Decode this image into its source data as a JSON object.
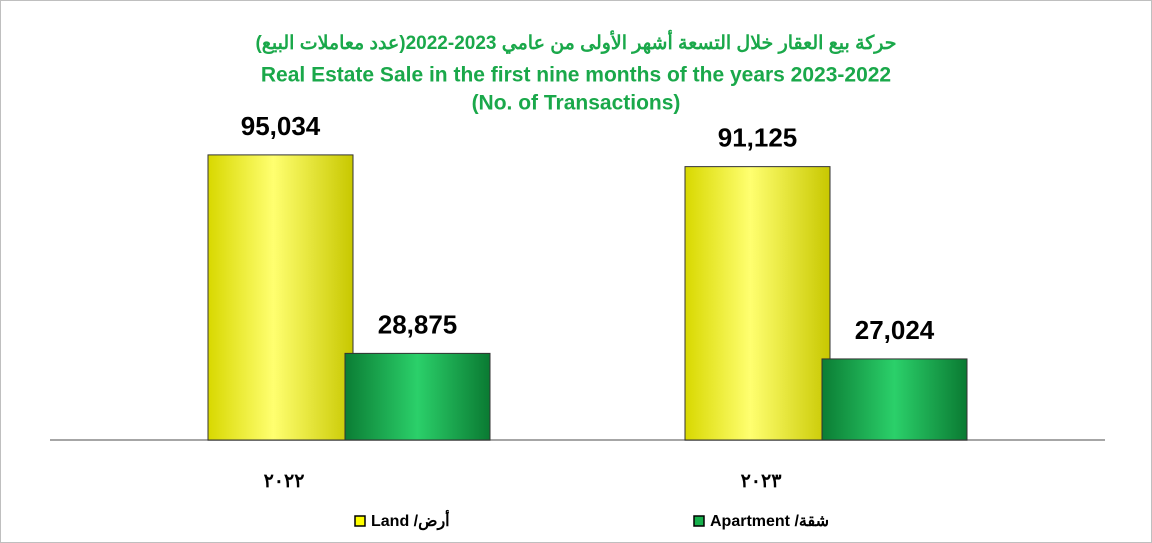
{
  "chart_data": {
    "type": "bar",
    "title_lines": [
      "حركة بيع العقار خلال التسعة أشهر الأولى من عامي 2023-2022(عدد معاملات البيع)",
      "Real Estate Sale in the first nine  months of the years 2023-2022",
      "(No. of Transactions)"
    ],
    "categories": [
      "٢٠٢٢",
      "٢٠٢٣"
    ],
    "series": [
      {
        "name": "Land /أرض",
        "color": "#ffff00",
        "values": [
          95034,
          91125
        ],
        "value_labels": [
          "95,034",
          "91,125"
        ]
      },
      {
        "name": "Apartment /شقة",
        "color": "#16b04c",
        "values": [
          28875,
          27024
        ],
        "value_labels": [
          "28,875",
          "27,024"
        ]
      }
    ],
    "ylim": [
      0,
      100000
    ],
    "legend": "bottom"
  }
}
